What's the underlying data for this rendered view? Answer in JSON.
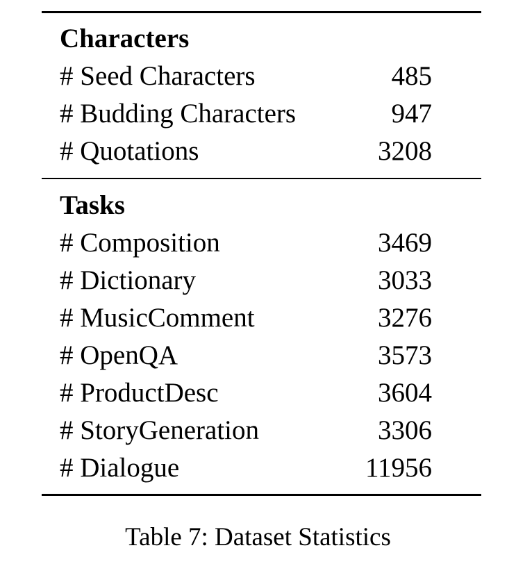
{
  "table": {
    "sections": [
      {
        "heading": "Characters",
        "rows": [
          {
            "label": "# Seed Characters",
            "value": "485"
          },
          {
            "label": "# Budding Characters",
            "value": "947"
          },
          {
            "label": "# Quotations",
            "value": "3208"
          }
        ]
      },
      {
        "heading": "Tasks",
        "rows": [
          {
            "label": "# Composition",
            "value": "3469"
          },
          {
            "label": "# Dictionary",
            "value": "3033"
          },
          {
            "label": "# MusicComment",
            "value": "3276"
          },
          {
            "label": "# OpenQA",
            "value": "3573"
          },
          {
            "label": "# ProductDesc",
            "value": "3604"
          },
          {
            "label": "# StoryGeneration",
            "value": "3306"
          },
          {
            "label": "# Dialogue",
            "value": "11956"
          }
        ]
      }
    ],
    "caption": "Table 7: Dataset Statistics"
  }
}
